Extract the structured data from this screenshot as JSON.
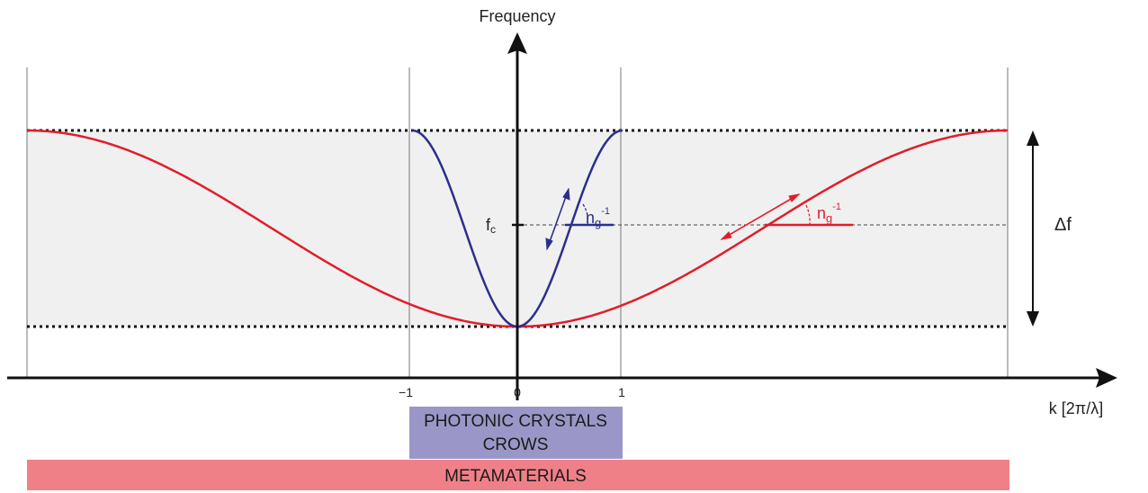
{
  "axes": {
    "y_label": "Frequency",
    "x_label": "k [2π/λ]",
    "x_ticks": [
      "−1",
      "0",
      "1"
    ],
    "fc_label": "f",
    "fc_sub": "c",
    "delta_label": "Δf"
  },
  "annotations": {
    "ng_base": "n",
    "ng_sub": "g",
    "ng_sup": "-1"
  },
  "bars": {
    "photonic_line1": "PHOTONIC CRYSTALS",
    "photonic_line2": "CROWS",
    "metamaterials": "METAMATERIALS"
  },
  "colors": {
    "blue_curve": "#2b2f8c",
    "red_curve": "#e01e2a",
    "band_fill": "#f0f0f0",
    "photonic_bar": "#9a97c8",
    "metamaterials_bar": "#f08088",
    "axis": "#111111"
  }
}
